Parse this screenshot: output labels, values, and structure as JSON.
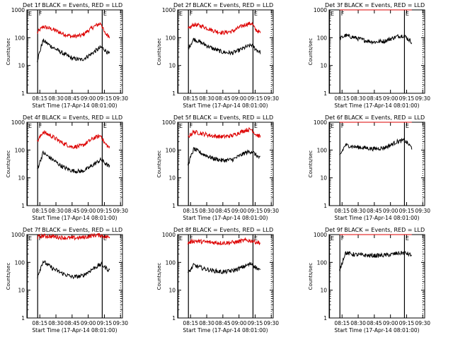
{
  "colors": {
    "events": "#000000",
    "lld": "#dd0000",
    "axes": "#000000",
    "background": "#ffffff"
  },
  "chart_data": [
    {
      "type": "line",
      "title": "Det  1f BLACK = Events, RED = LLD",
      "xlabel": "Start Time (17-Apr-14 08:01:00)",
      "ylabel": "Counts/sec",
      "y_scale": "log",
      "ylim": [
        1,
        1000
      ],
      "y_ticks": [
        "1",
        "10",
        "100",
        "1000"
      ],
      "x_ticks": [
        "08:15",
        "08:30",
        "08:45",
        "09:00",
        "09:15",
        "09:30"
      ],
      "markers": [
        "E",
        "F",
        "E"
      ],
      "series": [
        {
          "name": "LLD",
          "color": "#dd0000",
          "x": [
            8.21,
            8.3,
            8.45,
            8.6,
            8.75,
            8.9,
            9.0,
            9.1,
            9.2,
            9.25,
            9.33
          ],
          "values": [
            150,
            250,
            200,
            140,
            110,
            120,
            180,
            260,
            330,
            150,
            110
          ]
        },
        {
          "name": "Events",
          "color": "#000000",
          "x": [
            8.21,
            8.3,
            8.45,
            8.6,
            8.75,
            8.9,
            9.0,
            9.1,
            9.2,
            9.25,
            9.33
          ],
          "values": [
            15,
            80,
            45,
            28,
            18,
            16,
            22,
            32,
            45,
            38,
            25
          ]
        }
      ]
    },
    {
      "type": "line",
      "title": "Det  2f BLACK = Events, RED = LLD",
      "xlabel": "Start Time (17-Apr-14 08:01:00)",
      "ylabel": "Counts/sec",
      "y_scale": "log",
      "ylim": [
        1,
        1000
      ],
      "y_ticks": [
        "1",
        "10",
        "100",
        "1000"
      ],
      "x_ticks": [
        "08:15",
        "08:30",
        "08:45",
        "09:00",
        "09:15",
        "09:30"
      ],
      "markers": [
        "E",
        "F",
        "E"
      ],
      "series": [
        {
          "name": "LLD",
          "color": "#dd0000",
          "x": [
            8.21,
            8.3,
            8.45,
            8.6,
            8.75,
            8.9,
            9.0,
            9.1,
            9.2,
            9.25,
            9.33
          ],
          "values": [
            200,
            300,
            250,
            180,
            150,
            170,
            230,
            300,
            330,
            200,
            150
          ]
        },
        {
          "name": "Events",
          "color": "#000000",
          "x": [
            8.21,
            8.3,
            8.45,
            8.6,
            8.75,
            8.9,
            9.0,
            9.1,
            9.2,
            9.25,
            9.33
          ],
          "values": [
            40,
            90,
            60,
            40,
            30,
            28,
            35,
            45,
            55,
            40,
            30
          ]
        }
      ]
    },
    {
      "type": "line",
      "title": "Det  3f BLACK = Events, RED = LLD",
      "xlabel": "Start Time (17-Apr-14 08:01:00)",
      "ylabel": "Counts/sec",
      "y_scale": "log",
      "ylim": [
        1,
        1000
      ],
      "y_ticks": [
        "1",
        "10",
        "100",
        "1000"
      ],
      "x_ticks": [
        "08:15",
        "08:30",
        "08:45",
        "09:00",
        "09:15",
        "09:30"
      ],
      "markers": [
        "E",
        "F",
        "E"
      ],
      "series": [
        {
          "name": "LLD",
          "color": "#dd0000",
          "x": [
            8.21,
            8.3,
            8.45,
            8.6,
            8.75,
            8.9,
            9.0,
            9.1,
            9.2,
            9.25,
            9.33
          ],
          "values": [
            1000,
            1000,
            1000,
            1000,
            1000,
            1000,
            1000,
            1000,
            1000,
            1000,
            1000
          ]
        },
        {
          "name": "Events",
          "color": "#000000",
          "x": [
            8.21,
            8.3,
            8.45,
            8.6,
            8.75,
            8.9,
            9.0,
            9.1,
            9.2,
            9.25,
            9.33
          ],
          "values": [
            90,
            120,
            100,
            80,
            70,
            75,
            90,
            110,
            120,
            100,
            70
          ]
        }
      ]
    },
    {
      "type": "line",
      "title": "Det  4f BLACK = Events, RED = LLD",
      "xlabel": "Start Time (17-Apr-14 08:01:00)",
      "ylabel": "Counts/sec",
      "y_scale": "log",
      "ylim": [
        1,
        1000
      ],
      "y_ticks": [
        "1",
        "10",
        "100",
        "1000"
      ],
      "x_ticks": [
        "08:15",
        "08:30",
        "08:45",
        "09:00",
        "09:15",
        "09:30"
      ],
      "markers": [
        "E",
        "F",
        "E"
      ],
      "series": [
        {
          "name": "LLD",
          "color": "#dd0000",
          "x": [
            8.21,
            8.3,
            8.45,
            8.6,
            8.75,
            8.9,
            9.0,
            9.1,
            9.2,
            9.25,
            9.33
          ],
          "values": [
            200,
            450,
            300,
            180,
            130,
            140,
            200,
            280,
            330,
            180,
            120
          ]
        },
        {
          "name": "Events",
          "color": "#000000",
          "x": [
            8.21,
            8.3,
            8.45,
            8.6,
            8.75,
            8.9,
            9.0,
            9.1,
            9.2,
            9.25,
            9.33
          ],
          "values": [
            20,
            80,
            45,
            25,
            18,
            17,
            22,
            32,
            45,
            35,
            25
          ]
        }
      ]
    },
    {
      "type": "line",
      "title": "Det  5f BLACK = Events, RED = LLD",
      "xlabel": "Start Time (17-Apr-14 08:01:00)",
      "ylabel": "Counts/sec",
      "y_scale": "log",
      "ylim": [
        1,
        1000
      ],
      "y_ticks": [
        "1",
        "10",
        "100",
        "1000"
      ],
      "x_ticks": [
        "08:15",
        "08:30",
        "08:45",
        "09:00",
        "09:15",
        "09:30"
      ],
      "markers": [
        "E",
        "F",
        "E"
      ],
      "series": [
        {
          "name": "LLD",
          "color": "#dd0000",
          "x": [
            8.21,
            8.3,
            8.45,
            8.6,
            8.75,
            8.9,
            9.0,
            9.1,
            9.2,
            9.25,
            9.33
          ],
          "values": [
            300,
            450,
            380,
            320,
            300,
            330,
            420,
            520,
            550,
            380,
            300
          ]
        },
        {
          "name": "Events",
          "color": "#000000",
          "x": [
            8.21,
            8.3,
            8.45,
            8.6,
            8.75,
            8.9,
            9.0,
            9.1,
            9.2,
            9.25,
            9.33
          ],
          "values": [
            30,
            110,
            70,
            50,
            42,
            45,
            60,
            80,
            90,
            70,
            50
          ]
        }
      ]
    },
    {
      "type": "line",
      "title": "Det  6f BLACK = Events, RED = LLD",
      "xlabel": "Start Time (17-Apr-14 08:01:00)",
      "ylabel": "Counts/sec",
      "y_scale": "log",
      "ylim": [
        1,
        1000
      ],
      "y_ticks": [
        "1",
        "10",
        "100",
        "1000"
      ],
      "x_ticks": [
        "08:15",
        "08:30",
        "08:45",
        "09:00",
        "09:15",
        "09:30"
      ],
      "markers": [
        "E",
        "F",
        "E"
      ],
      "series": [
        {
          "name": "LLD",
          "color": "#dd0000",
          "x": [
            8.21,
            8.3,
            8.45,
            8.6,
            8.75,
            8.9,
            9.0,
            9.1,
            9.2,
            9.25,
            9.33
          ],
          "values": [
            1000,
            1000,
            1000,
            1000,
            1000,
            1000,
            1000,
            1000,
            1000,
            1000,
            1000
          ]
        },
        {
          "name": "Events",
          "color": "#000000",
          "x": [
            8.21,
            8.3,
            8.45,
            8.6,
            8.75,
            8.9,
            9.0,
            9.1,
            9.2,
            9.25,
            9.33
          ],
          "values": [
            60,
            150,
            130,
            120,
            110,
            120,
            150,
            200,
            220,
            190,
            120
          ]
        }
      ]
    },
    {
      "type": "line",
      "title": "Det  7f BLACK = Events, RED = LLD",
      "xlabel": "Start Time (17-Apr-14 08:01:00)",
      "ylabel": "Counts/sec",
      "y_scale": "log",
      "ylim": [
        1,
        1000
      ],
      "y_ticks": [
        "1",
        "10",
        "100",
        "1000"
      ],
      "x_ticks": [
        "08:15",
        "08:30",
        "08:45",
        "09:00",
        "09:15",
        "09:30"
      ],
      "markers": [
        "E",
        "F",
        "E"
      ],
      "series": [
        {
          "name": "LLD",
          "color": "#dd0000",
          "x": [
            8.21,
            8.3,
            8.45,
            8.6,
            8.75,
            8.9,
            9.0,
            9.1,
            9.2,
            9.25,
            9.33
          ],
          "values": [
            800,
            900,
            850,
            780,
            750,
            780,
            850,
            950,
            950,
            850,
            800
          ]
        },
        {
          "name": "Events",
          "color": "#000000",
          "x": [
            8.21,
            8.3,
            8.45,
            8.6,
            8.75,
            8.9,
            9.0,
            9.1,
            9.2,
            9.25,
            9.33
          ],
          "values": [
            30,
            110,
            60,
            40,
            30,
            32,
            45,
            65,
            85,
            70,
            50
          ]
        }
      ]
    },
    {
      "type": "line",
      "title": "Det  8f BLACK = Events, RED = LLD",
      "xlabel": "Start Time (17-Apr-14 08:01:00)",
      "ylabel": "Counts/sec",
      "y_scale": "log",
      "ylim": [
        1,
        1000
      ],
      "y_ticks": [
        "1",
        "10",
        "100",
        "1000"
      ],
      "x_ticks": [
        "08:15",
        "08:30",
        "08:45",
        "09:00",
        "09:15",
        "09:30"
      ],
      "markers": [
        "E",
        "F",
        "E"
      ],
      "series": [
        {
          "name": "LLD",
          "color": "#dd0000",
          "x": [
            8.21,
            8.3,
            8.45,
            8.6,
            8.75,
            8.9,
            9.0,
            9.1,
            9.2,
            9.25,
            9.33
          ],
          "values": [
            500,
            600,
            550,
            520,
            500,
            520,
            560,
            620,
            600,
            550,
            500
          ]
        },
        {
          "name": "Events",
          "color": "#000000",
          "x": [
            8.21,
            8.3,
            8.45,
            8.6,
            8.75,
            8.9,
            9.0,
            9.1,
            9.2,
            9.25,
            9.33
          ],
          "values": [
            40,
            80,
            60,
            50,
            45,
            50,
            60,
            75,
            90,
            70,
            50
          ]
        }
      ]
    },
    {
      "type": "line",
      "title": "Det  9f BLACK = Events, RED = LLD",
      "xlabel": "Start Time (17-Apr-14 08:01:00)",
      "ylabel": "Counts/sec",
      "y_scale": "log",
      "ylim": [
        1,
        1000
      ],
      "y_ticks": [
        "1",
        "10",
        "100",
        "1000"
      ],
      "x_ticks": [
        "08:15",
        "08:30",
        "08:45",
        "09:00",
        "09:15",
        "09:30"
      ],
      "markers": [
        "E",
        "F",
        "E"
      ],
      "series": [
        {
          "name": "LLD",
          "color": "#dd0000",
          "x": [
            8.21,
            8.3,
            8.45,
            8.6,
            8.75,
            8.9,
            9.0,
            9.1,
            9.2,
            9.25,
            9.33
          ],
          "values": [
            1000,
            1000,
            1000,
            1000,
            1000,
            1000,
            1000,
            1000,
            1000,
            1000,
            1000
          ]
        },
        {
          "name": "Events",
          "color": "#000000",
          "x": [
            8.21,
            8.3,
            8.45,
            8.6,
            8.75,
            8.9,
            9.0,
            9.1,
            9.2,
            9.25,
            9.33
          ],
          "values": [
            50,
            220,
            190,
            180,
            175,
            180,
            190,
            210,
            220,
            210,
            180
          ]
        }
      ]
    }
  ]
}
